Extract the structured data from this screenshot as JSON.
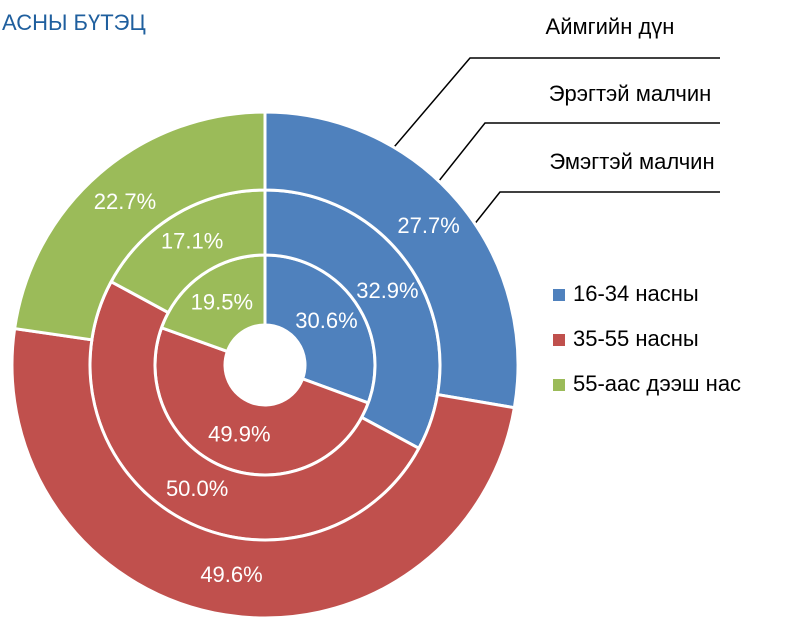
{
  "chart_data": {
    "type": "donut",
    "title": "АСНЫ БҮТЭЦ",
    "categories": [
      "16-34 насны",
      "35-55 насны",
      "55-аас дээш нас"
    ],
    "colors": [
      "#4f81bd",
      "#c0504d",
      "#9bbb59"
    ],
    "series": [
      {
        "name": "Аймгийн дүн",
        "values": [
          30.6,
          49.9,
          19.5
        ],
        "value_labels": [
          "30.6%",
          "49.9%",
          "19.5%"
        ]
      },
      {
        "name": "Эрэгтэй малчин",
        "values": [
          32.9,
          50.0,
          17.1
        ],
        "value_labels": [
          "32.9%",
          "50.0%",
          "17.1%"
        ]
      },
      {
        "name": "Эмэгтэй малчин",
        "values": [
          27.7,
          49.6,
          22.7
        ],
        "value_labels": [
          "27.7%",
          "49.6%",
          "22.7%"
        ]
      }
    ]
  }
}
